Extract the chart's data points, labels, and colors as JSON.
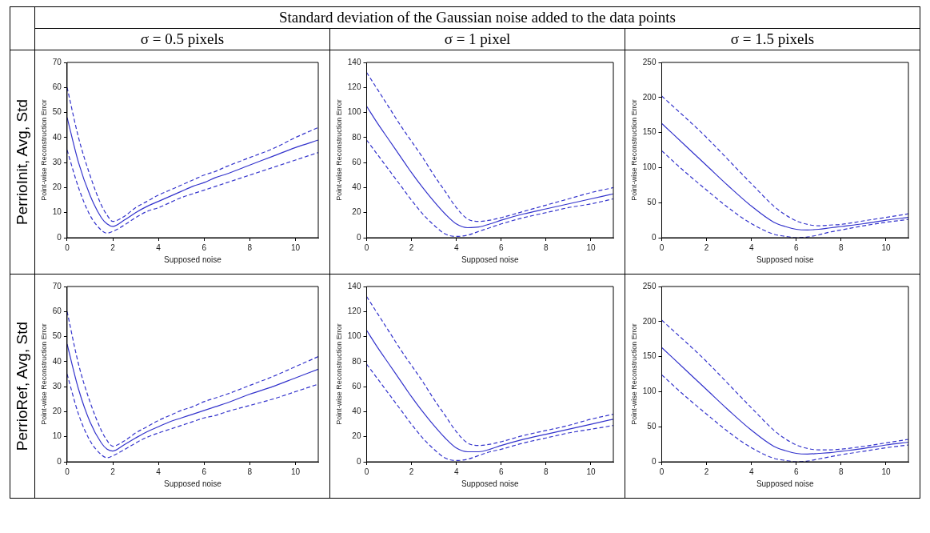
{
  "chart_data": [
    {
      "type": "line",
      "title": "σ = 0.5 pixels",
      "annotations": [
        "Standard deviation of the Gaussian noise added to the data points",
        "PerrioInit, Avg, Std"
      ],
      "xlabel": "Supposed noise",
      "ylabel": "Point-wise Reconstruction Error",
      "xlim": [
        0,
        11
      ],
      "xticks": [
        0,
        2,
        4,
        6,
        8,
        10
      ],
      "ylim": [
        0,
        70
      ],
      "yticks": [
        0,
        10,
        20,
        30,
        40,
        50,
        60,
        70
      ],
      "grid": false,
      "legend": false,
      "marker": "none",
      "x": [
        0,
        0.5,
        1,
        1.5,
        1.75,
        2,
        2.5,
        3,
        3.5,
        4,
        4.5,
        5,
        5.5,
        6,
        6.5,
        7,
        8,
        9,
        10,
        11
      ],
      "series": [
        {
          "color": "#3333cc",
          "line_style": "solid",
          "values": [
            48,
            30,
            17,
            8,
            5.5,
            4.5,
            7,
            10,
            12.5,
            14.5,
            16.5,
            18.5,
            20.5,
            22,
            24,
            25.5,
            29,
            32.5,
            36,
            39
          ]
        },
        {
          "color": "#3333cc",
          "line_style": "dashed",
          "values": [
            60,
            40,
            25,
            13,
            9,
            6.5,
            8.5,
            12,
            14.5,
            17,
            19,
            21,
            23,
            25,
            26.5,
            28.5,
            32,
            35.5,
            40,
            44
          ]
        },
        {
          "color": "#3333cc",
          "line_style": "dashed",
          "values": [
            35,
            20,
            9,
            3,
            1.8,
            2.5,
            5,
            8,
            10.5,
            12,
            14,
            16,
            17.5,
            19,
            20.5,
            22,
            25,
            28,
            31,
            34
          ]
        }
      ]
    },
    {
      "type": "line",
      "title": "σ = 1 pixel",
      "xlabel": "Supposed noise",
      "ylabel": "Point-wise Reconstruction Error",
      "xlim": [
        0,
        11
      ],
      "xticks": [
        0,
        2,
        4,
        6,
        8,
        10
      ],
      "ylim": [
        0,
        140
      ],
      "yticks": [
        0,
        20,
        40,
        60,
        80,
        100,
        120,
        140
      ],
      "grid": false,
      "legend": false,
      "marker": "none",
      "x": [
        0,
        0.5,
        1,
        1.5,
        2,
        2.5,
        3,
        3.5,
        4,
        4.5,
        5,
        5.5,
        6,
        7,
        8,
        9,
        10,
        11
      ],
      "series": [
        {
          "color": "#3333cc",
          "line_style": "solid",
          "values": [
            105,
            91,
            78,
            65,
            52,
            40,
            29,
            19,
            11,
            8,
            8.5,
            11,
            14,
            19,
            23,
            27,
            31,
            35
          ]
        },
        {
          "color": "#3333cc",
          "line_style": "dashed",
          "values": [
            132,
            118,
            104,
            90,
            77,
            64,
            50,
            37,
            24,
            15,
            13,
            14,
            16,
            21,
            26,
            31,
            36,
            40
          ]
        },
        {
          "color": "#3333cc",
          "line_style": "dashed",
          "values": [
            78,
            66,
            54,
            42,
            30,
            19,
            10,
            3,
            1,
            2,
            5,
            8,
            11,
            16,
            20,
            24,
            27,
            31
          ]
        }
      ]
    },
    {
      "type": "line",
      "title": "σ = 1.5 pixels",
      "xlabel": "Supposed noise",
      "ylabel": "Point-wise Reconstruction Error",
      "xlim": [
        0,
        11
      ],
      "xticks": [
        0,
        2,
        4,
        6,
        8,
        10
      ],
      "ylim": [
        0,
        250
      ],
      "yticks": [
        0,
        50,
        100,
        150,
        200,
        250
      ],
      "grid": false,
      "legend": false,
      "marker": "none",
      "x": [
        0,
        1,
        2,
        3,
        4,
        5,
        5.5,
        6,
        6.5,
        7,
        7.5,
        8,
        9,
        10,
        11
      ],
      "series": [
        {
          "color": "#3333cc",
          "line_style": "solid",
          "values": [
            163,
            133,
            103,
            73,
            45,
            22,
            16,
            12,
            11,
            12,
            14,
            16,
            20,
            25,
            29
          ]
        },
        {
          "color": "#3333cc",
          "line_style": "dashed",
          "values": [
            202,
            173,
            143,
            110,
            77,
            45,
            33,
            24,
            19,
            17,
            18,
            19,
            24,
            29,
            34
          ]
        },
        {
          "color": "#3333cc",
          "line_style": "dashed",
          "values": [
            124,
            95,
            68,
            42,
            20,
            5,
            2,
            0,
            1,
            4,
            8,
            11,
            17,
            22,
            26
          ]
        }
      ]
    },
    {
      "type": "line",
      "annotations": [
        "PerrioRef, Avg, Std"
      ],
      "xlabel": "Supposed noise",
      "ylabel": "Point-wise Reconstruction Error",
      "xlim": [
        0,
        11
      ],
      "xticks": [
        0,
        2,
        4,
        6,
        8,
        10
      ],
      "ylim": [
        0,
        70
      ],
      "yticks": [
        0,
        10,
        20,
        30,
        40,
        50,
        60,
        70
      ],
      "grid": false,
      "legend": false,
      "marker": "none",
      "x": [
        0,
        0.5,
        1,
        1.5,
        1.75,
        2,
        2.5,
        3,
        3.5,
        4,
        4.5,
        5,
        5.5,
        6,
        6.5,
        7,
        8,
        9,
        10,
        11
      ],
      "series": [
        {
          "color": "#3333cc",
          "line_style": "solid",
          "values": [
            47,
            29,
            16,
            7.5,
            5,
            4.3,
            6.8,
            9.5,
            12,
            14,
            16,
            17.5,
            19,
            20.5,
            22,
            23.5,
            27,
            30,
            33.5,
            37
          ]
        },
        {
          "color": "#3333cc",
          "line_style": "dashed",
          "values": [
            60,
            39,
            24,
            12.5,
            8.5,
            6.2,
            8.3,
            11.5,
            14,
            16.5,
            18.5,
            20.5,
            22,
            24,
            25.5,
            27,
            30.5,
            34,
            38,
            42
          ]
        },
        {
          "color": "#3333cc",
          "line_style": "dashed",
          "values": [
            35,
            19,
            8.5,
            2.8,
            1.6,
            2.4,
            4.8,
            7.5,
            9.8,
            11.5,
            13,
            14.5,
            16,
            17.5,
            18.5,
            20,
            22.5,
            25,
            28,
            31
          ]
        }
      ]
    },
    {
      "type": "line",
      "xlabel": "Supposed noise",
      "ylabel": "Point-wise Reconstruction Error",
      "xlim": [
        0,
        11
      ],
      "xticks": [
        0,
        2,
        4,
        6,
        8,
        10
      ],
      "ylim": [
        0,
        140
      ],
      "yticks": [
        0,
        20,
        40,
        60,
        80,
        100,
        120,
        140
      ],
      "grid": false,
      "legend": false,
      "marker": "none",
      "x": [
        0,
        0.5,
        1,
        1.5,
        2,
        2.5,
        3,
        3.5,
        4,
        4.5,
        5,
        5.5,
        6,
        7,
        8,
        9,
        10,
        11
      ],
      "series": [
        {
          "color": "#3333cc",
          "line_style": "solid",
          "values": [
            105,
            91,
            78,
            65,
            52,
            40,
            29,
            19,
            11,
            8,
            8,
            10,
            13,
            18,
            22,
            26,
            30,
            34
          ]
        },
        {
          "color": "#3333cc",
          "line_style": "dashed",
          "values": [
            132,
            118,
            104,
            90,
            77,
            64,
            50,
            37,
            24,
            15,
            13,
            14,
            16,
            21,
            25,
            29,
            34,
            38
          ]
        },
        {
          "color": "#3333cc",
          "line_style": "dashed",
          "values": [
            78,
            66,
            54,
            42,
            30,
            19,
            10,
            3,
            1,
            2,
            5,
            8,
            10,
            15,
            19,
            23,
            26,
            29
          ]
        }
      ]
    },
    {
      "type": "line",
      "xlabel": "Supposed noise",
      "ylabel": "Point-wise Reconstruction Error",
      "xlim": [
        0,
        11
      ],
      "xticks": [
        0,
        2,
        4,
        6,
        8,
        10
      ],
      "ylim": [
        0,
        250
      ],
      "yticks": [
        0,
        50,
        100,
        150,
        200,
        250
      ],
      "grid": false,
      "legend": false,
      "marker": "none",
      "x": [
        0,
        1,
        2,
        3,
        4,
        5,
        5.5,
        6,
        6.5,
        7,
        7.5,
        8,
        9,
        10,
        11
      ],
      "series": [
        {
          "color": "#3333cc",
          "line_style": "solid",
          "values": [
            163,
            133,
            103,
            73,
            45,
            22,
            16,
            12,
            11,
            12,
            13,
            15,
            19,
            24,
            28
          ]
        },
        {
          "color": "#3333cc",
          "line_style": "dashed",
          "values": [
            202,
            173,
            143,
            110,
            77,
            45,
            33,
            24,
            19,
            17,
            17,
            18,
            22,
            27,
            32
          ]
        },
        {
          "color": "#3333cc",
          "line_style": "dashed",
          "values": [
            124,
            95,
            68,
            42,
            20,
            5,
            2,
            0,
            1,
            4,
            7,
            10,
            15,
            20,
            24
          ]
        }
      ]
    }
  ]
}
